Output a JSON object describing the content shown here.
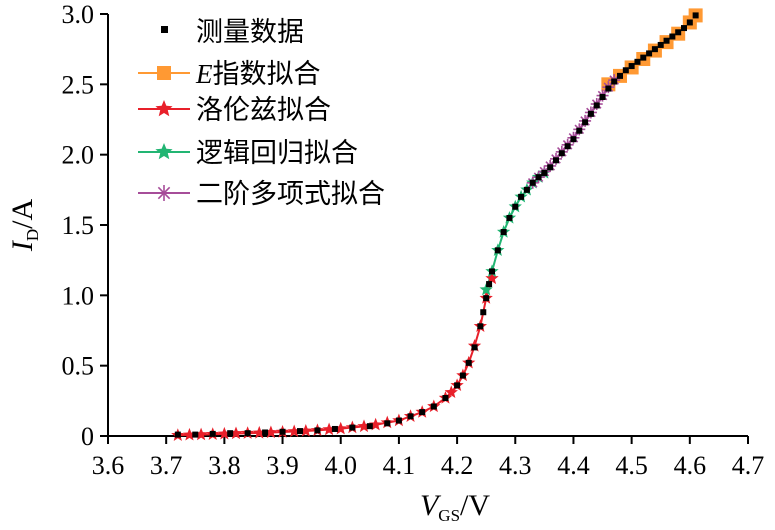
{
  "chart_data": {
    "type": "scatter",
    "title": "",
    "xlabel": {
      "main": "V",
      "sub": "GS",
      "unit": "/V"
    },
    "ylabel": {
      "main": "I",
      "sub": "D",
      "unit": "/A"
    },
    "xlim": [
      3.6,
      4.7
    ],
    "ylim": [
      0,
      3.0
    ],
    "x_ticks": [
      "3.6",
      "3.7",
      "3.8",
      "3.9",
      "4.0",
      "4.1",
      "4.2",
      "4.3",
      "4.4",
      "4.5",
      "4.6",
      "4.7"
    ],
    "y_ticks": [
      "0",
      "0.5",
      "1.0",
      "1.5",
      "2.0",
      "2.5",
      "3.0"
    ],
    "grid": false,
    "legend_position": "top-left",
    "measured": {
      "name": "测量数据",
      "color": "#000000",
      "marker": "square",
      "x": [
        3.72,
        3.75,
        3.78,
        3.81,
        3.84,
        3.87,
        3.9,
        3.93,
        3.96,
        3.99,
        4.02,
        4.05,
        4.08,
        4.1,
        4.12,
        4.14,
        4.16,
        4.18,
        4.2,
        4.21,
        4.22,
        4.23,
        4.24,
        4.245,
        4.25,
        4.255,
        4.26,
        4.27,
        4.28,
        4.29,
        4.3,
        4.31,
        4.32,
        4.33,
        4.34,
        4.35,
        4.36,
        4.37,
        4.38,
        4.39,
        4.4,
        4.41,
        4.42,
        4.43,
        4.44,
        4.45,
        4.46,
        4.47,
        4.48,
        4.49,
        4.5,
        4.51,
        4.52,
        4.53,
        4.54,
        4.55,
        4.56,
        4.57,
        4.58,
        4.59,
        4.6,
        4.61
      ],
      "y": [
        0.01,
        0.01,
        0.015,
        0.02,
        0.02,
        0.025,
        0.03,
        0.035,
        0.04,
        0.05,
        0.06,
        0.07,
        0.09,
        0.11,
        0.14,
        0.17,
        0.21,
        0.27,
        0.36,
        0.43,
        0.52,
        0.63,
        0.78,
        0.88,
        0.98,
        1.08,
        1.17,
        1.32,
        1.45,
        1.55,
        1.63,
        1.7,
        1.75,
        1.8,
        1.84,
        1.87,
        1.91,
        1.96,
        2.01,
        2.06,
        2.11,
        2.17,
        2.23,
        2.29,
        2.35,
        2.41,
        2.47,
        2.52,
        2.56,
        2.6,
        2.63,
        2.66,
        2.69,
        2.72,
        2.75,
        2.78,
        2.81,
        2.84,
        2.87,
        2.9,
        2.94,
        2.99
      ]
    },
    "series": [
      {
        "name": "E指数拟合",
        "name_prefix": "E",
        "name_rest": "指数拟合",
        "color": "#ff9933",
        "marker": "square",
        "x": [
          4.46,
          4.48,
          4.5,
          4.52,
          4.54,
          4.56,
          4.58,
          4.6,
          4.61
        ],
        "y": [
          2.5,
          2.56,
          2.62,
          2.68,
          2.74,
          2.8,
          2.86,
          2.94,
          2.99
        ]
      },
      {
        "name": "洛伦兹拟合",
        "color": "#e8202a",
        "marker": "star",
        "x": [
          3.72,
          3.74,
          3.76,
          3.78,
          3.8,
          3.82,
          3.84,
          3.86,
          3.88,
          3.9,
          3.92,
          3.94,
          3.96,
          3.98,
          4.0,
          4.02,
          4.04,
          4.06,
          4.08,
          4.1,
          4.12,
          4.14,
          4.16,
          4.18,
          4.19,
          4.2,
          4.21,
          4.22,
          4.23,
          4.24,
          4.25,
          4.26
        ],
        "y": [
          0.005,
          0.008,
          0.01,
          0.012,
          0.015,
          0.018,
          0.02,
          0.022,
          0.025,
          0.028,
          0.032,
          0.036,
          0.04,
          0.046,
          0.052,
          0.06,
          0.068,
          0.08,
          0.095,
          0.11,
          0.14,
          0.17,
          0.21,
          0.27,
          0.31,
          0.36,
          0.43,
          0.52,
          0.64,
          0.78,
          0.98,
          1.12
        ]
      },
      {
        "name": "逻辑回归拟合",
        "color": "#22b573",
        "marker": "star",
        "x": [
          4.25,
          4.26,
          4.27,
          4.28,
          4.29,
          4.3,
          4.31,
          4.32,
          4.33,
          4.34,
          4.35
        ],
        "y": [
          1.04,
          1.17,
          1.32,
          1.45,
          1.55,
          1.63,
          1.7,
          1.75,
          1.8,
          1.84,
          1.87
        ]
      },
      {
        "name": "二阶多项式拟合",
        "color": "#a64d99",
        "marker": "asterisk",
        "x": [
          4.33,
          4.34,
          4.35,
          4.36,
          4.37,
          4.38,
          4.39,
          4.4,
          4.41,
          4.42,
          4.43,
          4.44,
          4.45,
          4.46,
          4.47
        ],
        "y": [
          1.8,
          1.84,
          1.88,
          1.92,
          1.97,
          2.02,
          2.07,
          2.12,
          2.18,
          2.24,
          2.3,
          2.36,
          2.42,
          2.48,
          2.53
        ]
      }
    ]
  }
}
